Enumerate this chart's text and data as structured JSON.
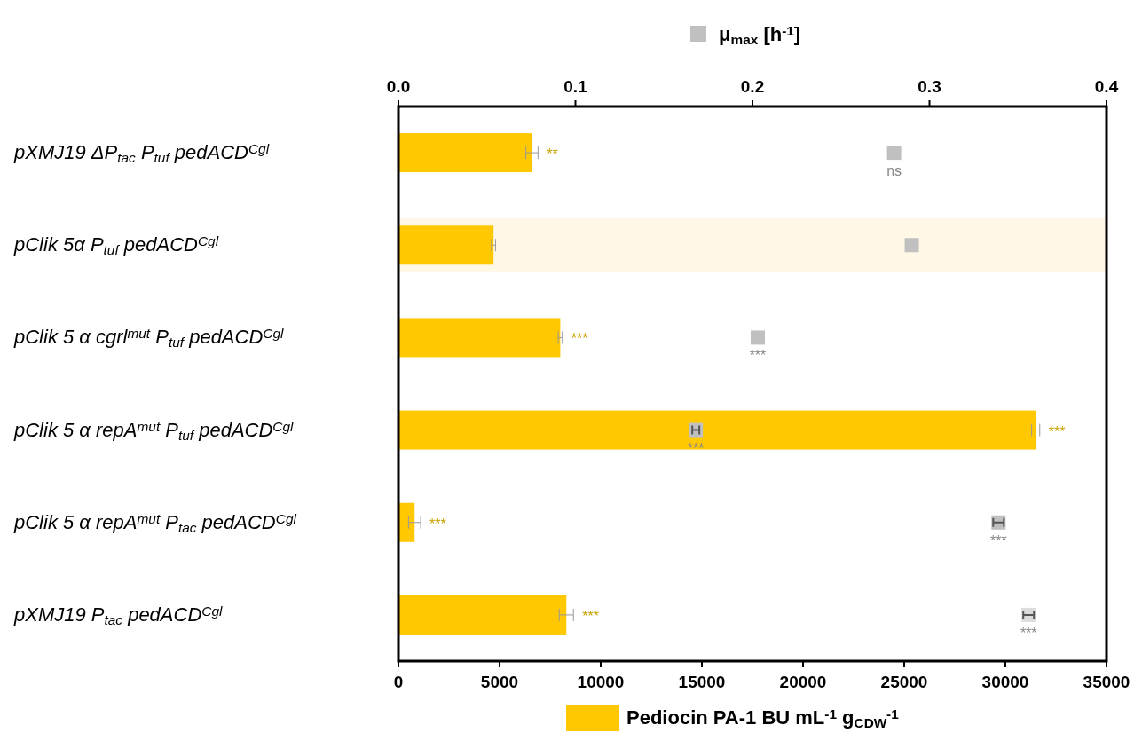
{
  "chart_data": {
    "type": "bar",
    "orientation": "horizontal",
    "categories": [
      "pXMJ19 ΔP$_{tac}$ P$_{tuf}$ pedACD$^{Cgl}$",
      "pClik 5α P$_{tuf}$ pedACD$^{Cgl}$",
      "pClik 5 α cgrl$^{mut}$ P$_{tuf}$ pedACD$^{Cgl}$",
      "pClik 5 α repA$^{mut}$ P$_{tuf}$ pedACD$^{Cgl}$",
      "pClik 5 α repA$^{mut}$ P$_{tac}$ pedACD$^{Cgl}$",
      "pXMJ19 P$_{tac}$ pedACD$^{Cgl}$"
    ],
    "series": [
      {
        "name": "Pediocin PA-1 BU mL$^{-1}$ g$_{CDW}$$^{-1}$",
        "color": "#ffc800",
        "values": [
          6600,
          4700,
          8000,
          31500,
          800,
          8300
        ],
        "errors": [
          300,
          100,
          100,
          200,
          300,
          350
        ],
        "value_labels": [
          "**",
          null,
          "***",
          "***",
          "***",
          "***"
        ]
      },
      {
        "name": "μ$_{max}$ [h$^{-1}$]",
        "type": "scatter",
        "axis": "x2",
        "marker": "square",
        "color": "#c0c0c0",
        "colors": [
          "#c0c0c0",
          "#c0c0c0",
          "#c0c0c0",
          "#c0c0c0",
          "#c0c0c0",
          "#dcdcdc"
        ],
        "values": [
          0.28,
          0.29,
          0.203,
          0.168,
          0.339,
          0.356
        ],
        "errors": [
          null,
          null,
          null,
          0.002,
          0.003,
          0.003
        ],
        "value_labels": [
          "ns",
          null,
          "***",
          "***",
          "***",
          "***"
        ]
      }
    ],
    "xlim": [
      0,
      35000
    ],
    "xticks": [
      0,
      5000,
      10000,
      15000,
      20000,
      25000,
      30000,
      35000
    ],
    "x2lim": [
      0,
      0.4
    ],
    "x2ticks": [
      {
        "value": 0,
        "label": "0.0"
      },
      0.1,
      0.2,
      0.3,
      0.4
    ],
    "bands": [
      {
        "axis": "y",
        "from": "pClik 5α P$_{tuf}$ pedACD$^{Cgl}$",
        "to": "pClik 5α P$_{tuf}$ pedACD$^{Cgl}$",
        "color": "#fff8e6"
      }
    ],
    "legend": "top",
    "grid": false
  }
}
